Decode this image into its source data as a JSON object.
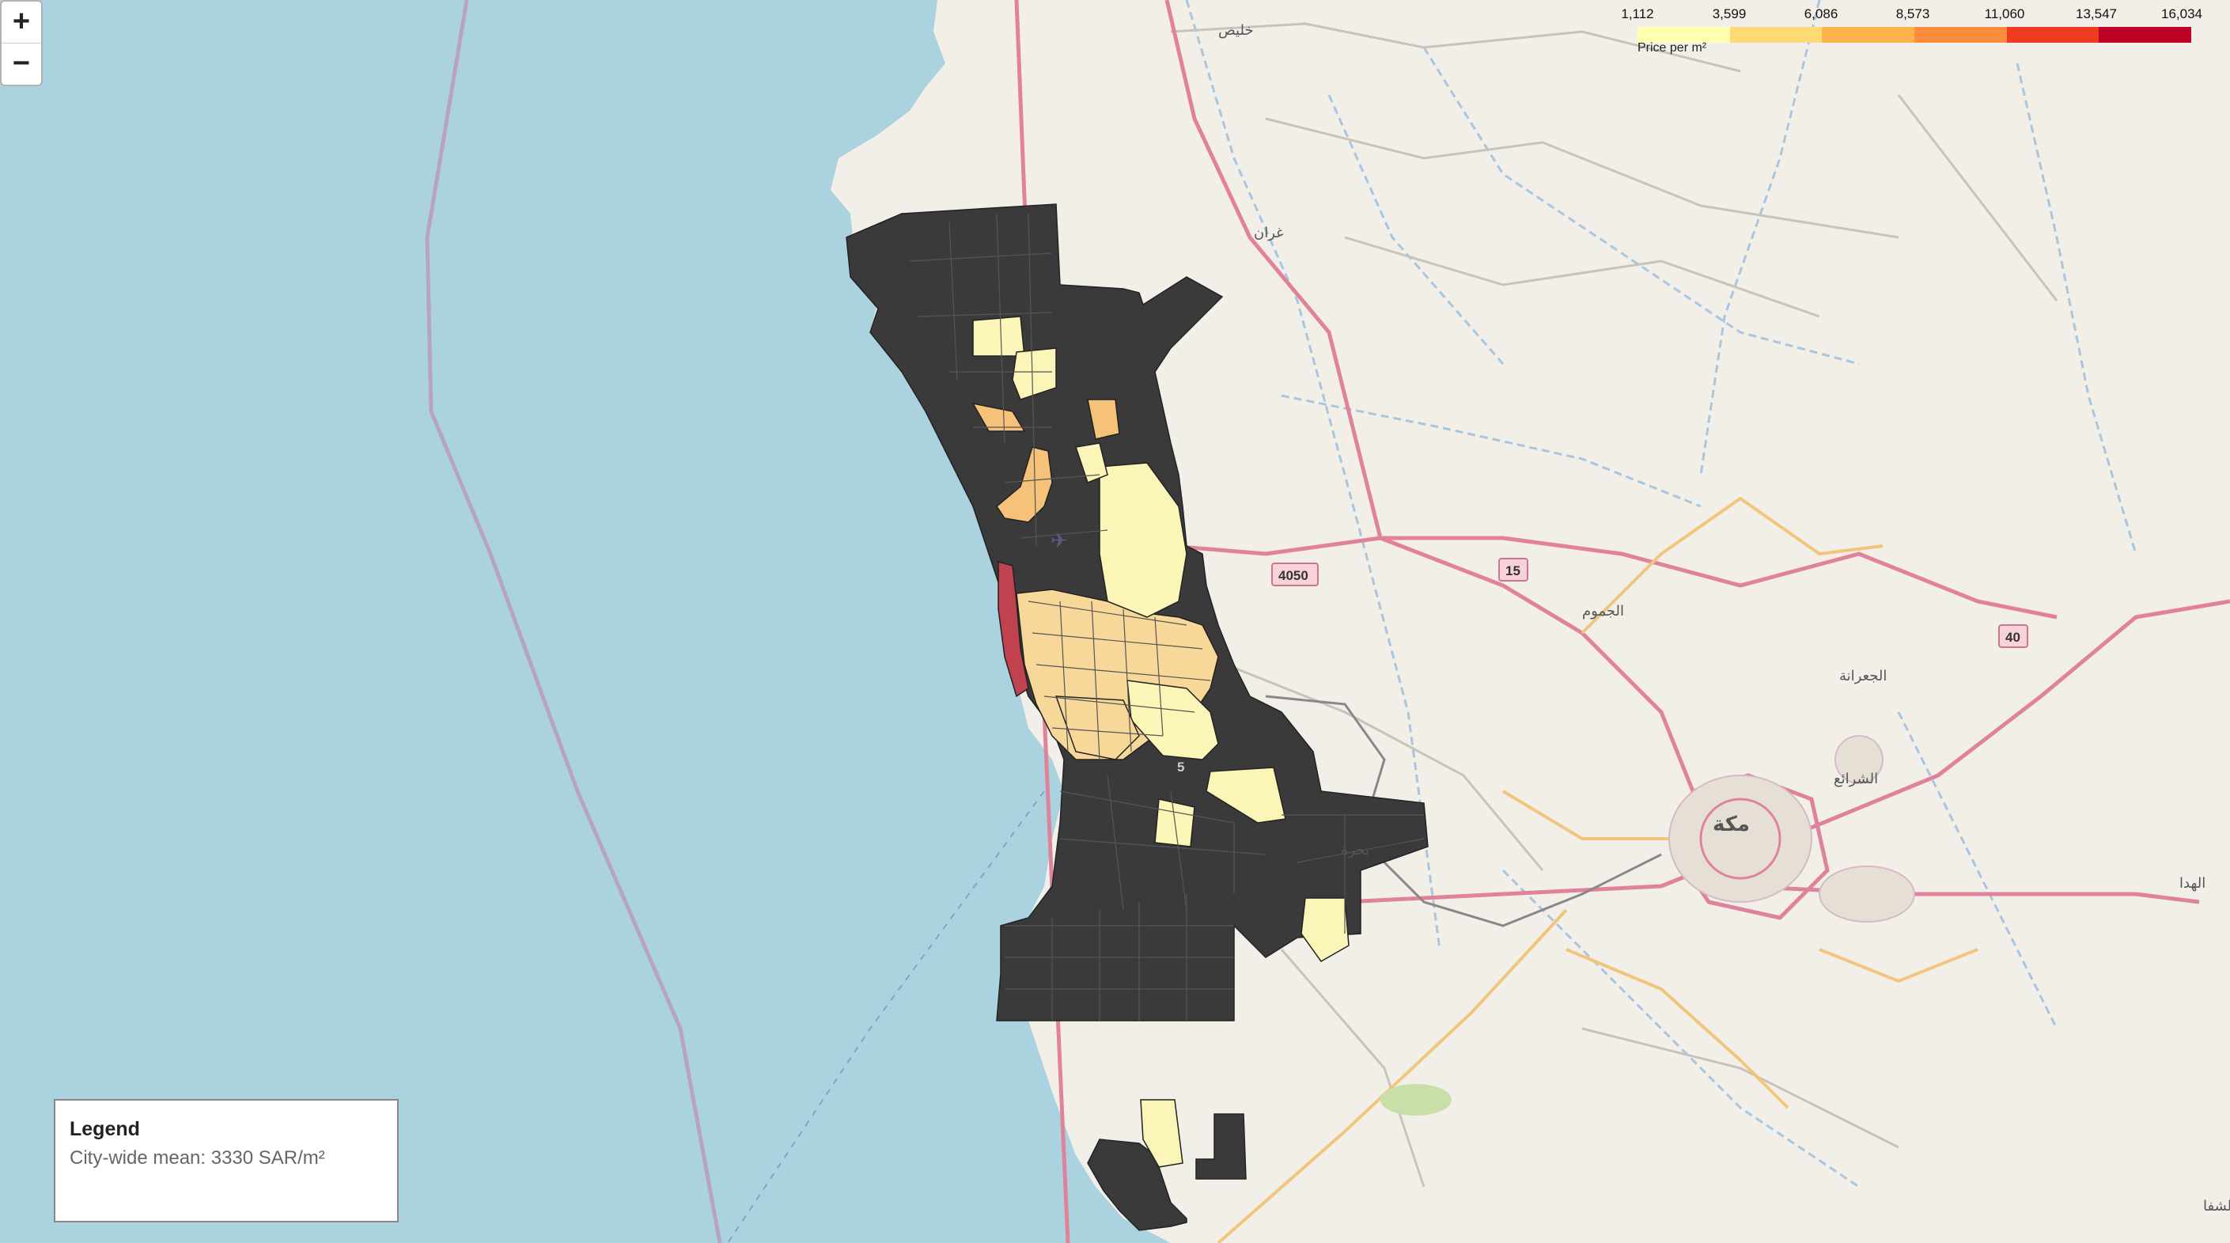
{
  "map": {
    "colors": {
      "sea": "#aad3df",
      "land": "#f2efe9",
      "no_data": "#3a3a3a",
      "highlight_red": "#c1424f"
    }
  },
  "zoom": {
    "zoom_in_label": "+",
    "zoom_out_label": "−"
  },
  "colorbar": {
    "ticks": [
      "1,112",
      "3,599",
      "6,086",
      "8,573",
      "11,060",
      "13,547",
      "16,034"
    ],
    "caption": "Price per m²",
    "colors": [
      "#ffffb2",
      "#fed976",
      "#feb24c",
      "#fd8d3c",
      "#f03b20",
      "#bd0026"
    ]
  },
  "places": {
    "khulais": "خليص",
    "ghran": "غران",
    "makkah": "مكة",
    "jumum": "الجموم",
    "jiranah": "الجعرانة",
    "sharaie": "الشرائع",
    "bahra": "بحرة",
    "hada": "الهدا",
    "shafa": "الشفا"
  },
  "road_shields": {
    "r4050": "4050",
    "r15": "15",
    "r40": "40",
    "r5": "5"
  },
  "legend": {
    "title": "Legend",
    "text": "City-wide mean: 3330 SAR/m²"
  }
}
